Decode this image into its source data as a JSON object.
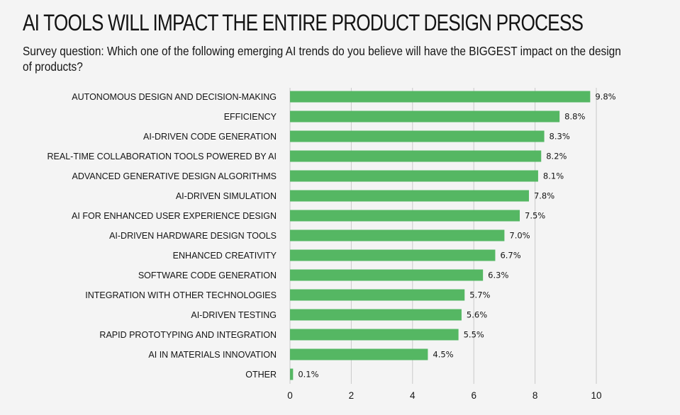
{
  "title": "AI TOOLS WILL IMPACT THE ENTIRE PRODUCT DESIGN PROCESS",
  "subtitle": "Survey question: Which one of the following emerging AI trends do you believe will have the BIGGEST impact on the design of products?",
  "colors": {
    "bar": "#55b763",
    "grid": "#c9c9c9",
    "background": "#f4f4f4"
  },
  "chart_data": {
    "type": "bar",
    "orientation": "horizontal",
    "title": "AI TOOLS WILL IMPACT THE ENTIRE PRODUCT DESIGN PROCESS",
    "xlabel": "",
    "ylabel": "",
    "xlim": [
      0,
      10
    ],
    "xticks": [
      0,
      2,
      4,
      6,
      8,
      10
    ],
    "grid": "vertical",
    "categories": [
      "AUTONOMOUS DESIGN AND DECISION-MAKING",
      "EFFICIENCY",
      "AI-DRIVEN CODE GENERATION",
      "REAL-TIME COLLABORATION TOOLS POWERED BY AI",
      "ADVANCED GENERATIVE DESIGN ALGORITHMS",
      "AI-DRIVEN SIMULATION",
      "AI FOR ENHANCED USER EXPERIENCE DESIGN",
      "AI-DRIVEN HARDWARE DESIGN TOOLS",
      "ENHANCED CREATIVITY",
      "SOFTWARE CODE GENERATION",
      "INTEGRATION WITH OTHER TECHNOLOGIES",
      "AI-DRIVEN TESTING",
      "RAPID PROTOTYPING AND INTEGRATION",
      "AI IN MATERIALS INNOVATION",
      "OTHER"
    ],
    "values": [
      9.8,
      8.8,
      8.3,
      8.2,
      8.1,
      7.8,
      7.5,
      7.0,
      6.7,
      6.3,
      5.7,
      5.6,
      5.5,
      4.5,
      0.1
    ],
    "value_labels": [
      "9.8%",
      "8.8%",
      "8.3%",
      "8.2%",
      "8.1%",
      "7.8%",
      "7.5%",
      "7.0%",
      "6.7%",
      "6.3%",
      "5.7%",
      "5.6%",
      "5.5%",
      "4.5%",
      "0.1%"
    ]
  }
}
